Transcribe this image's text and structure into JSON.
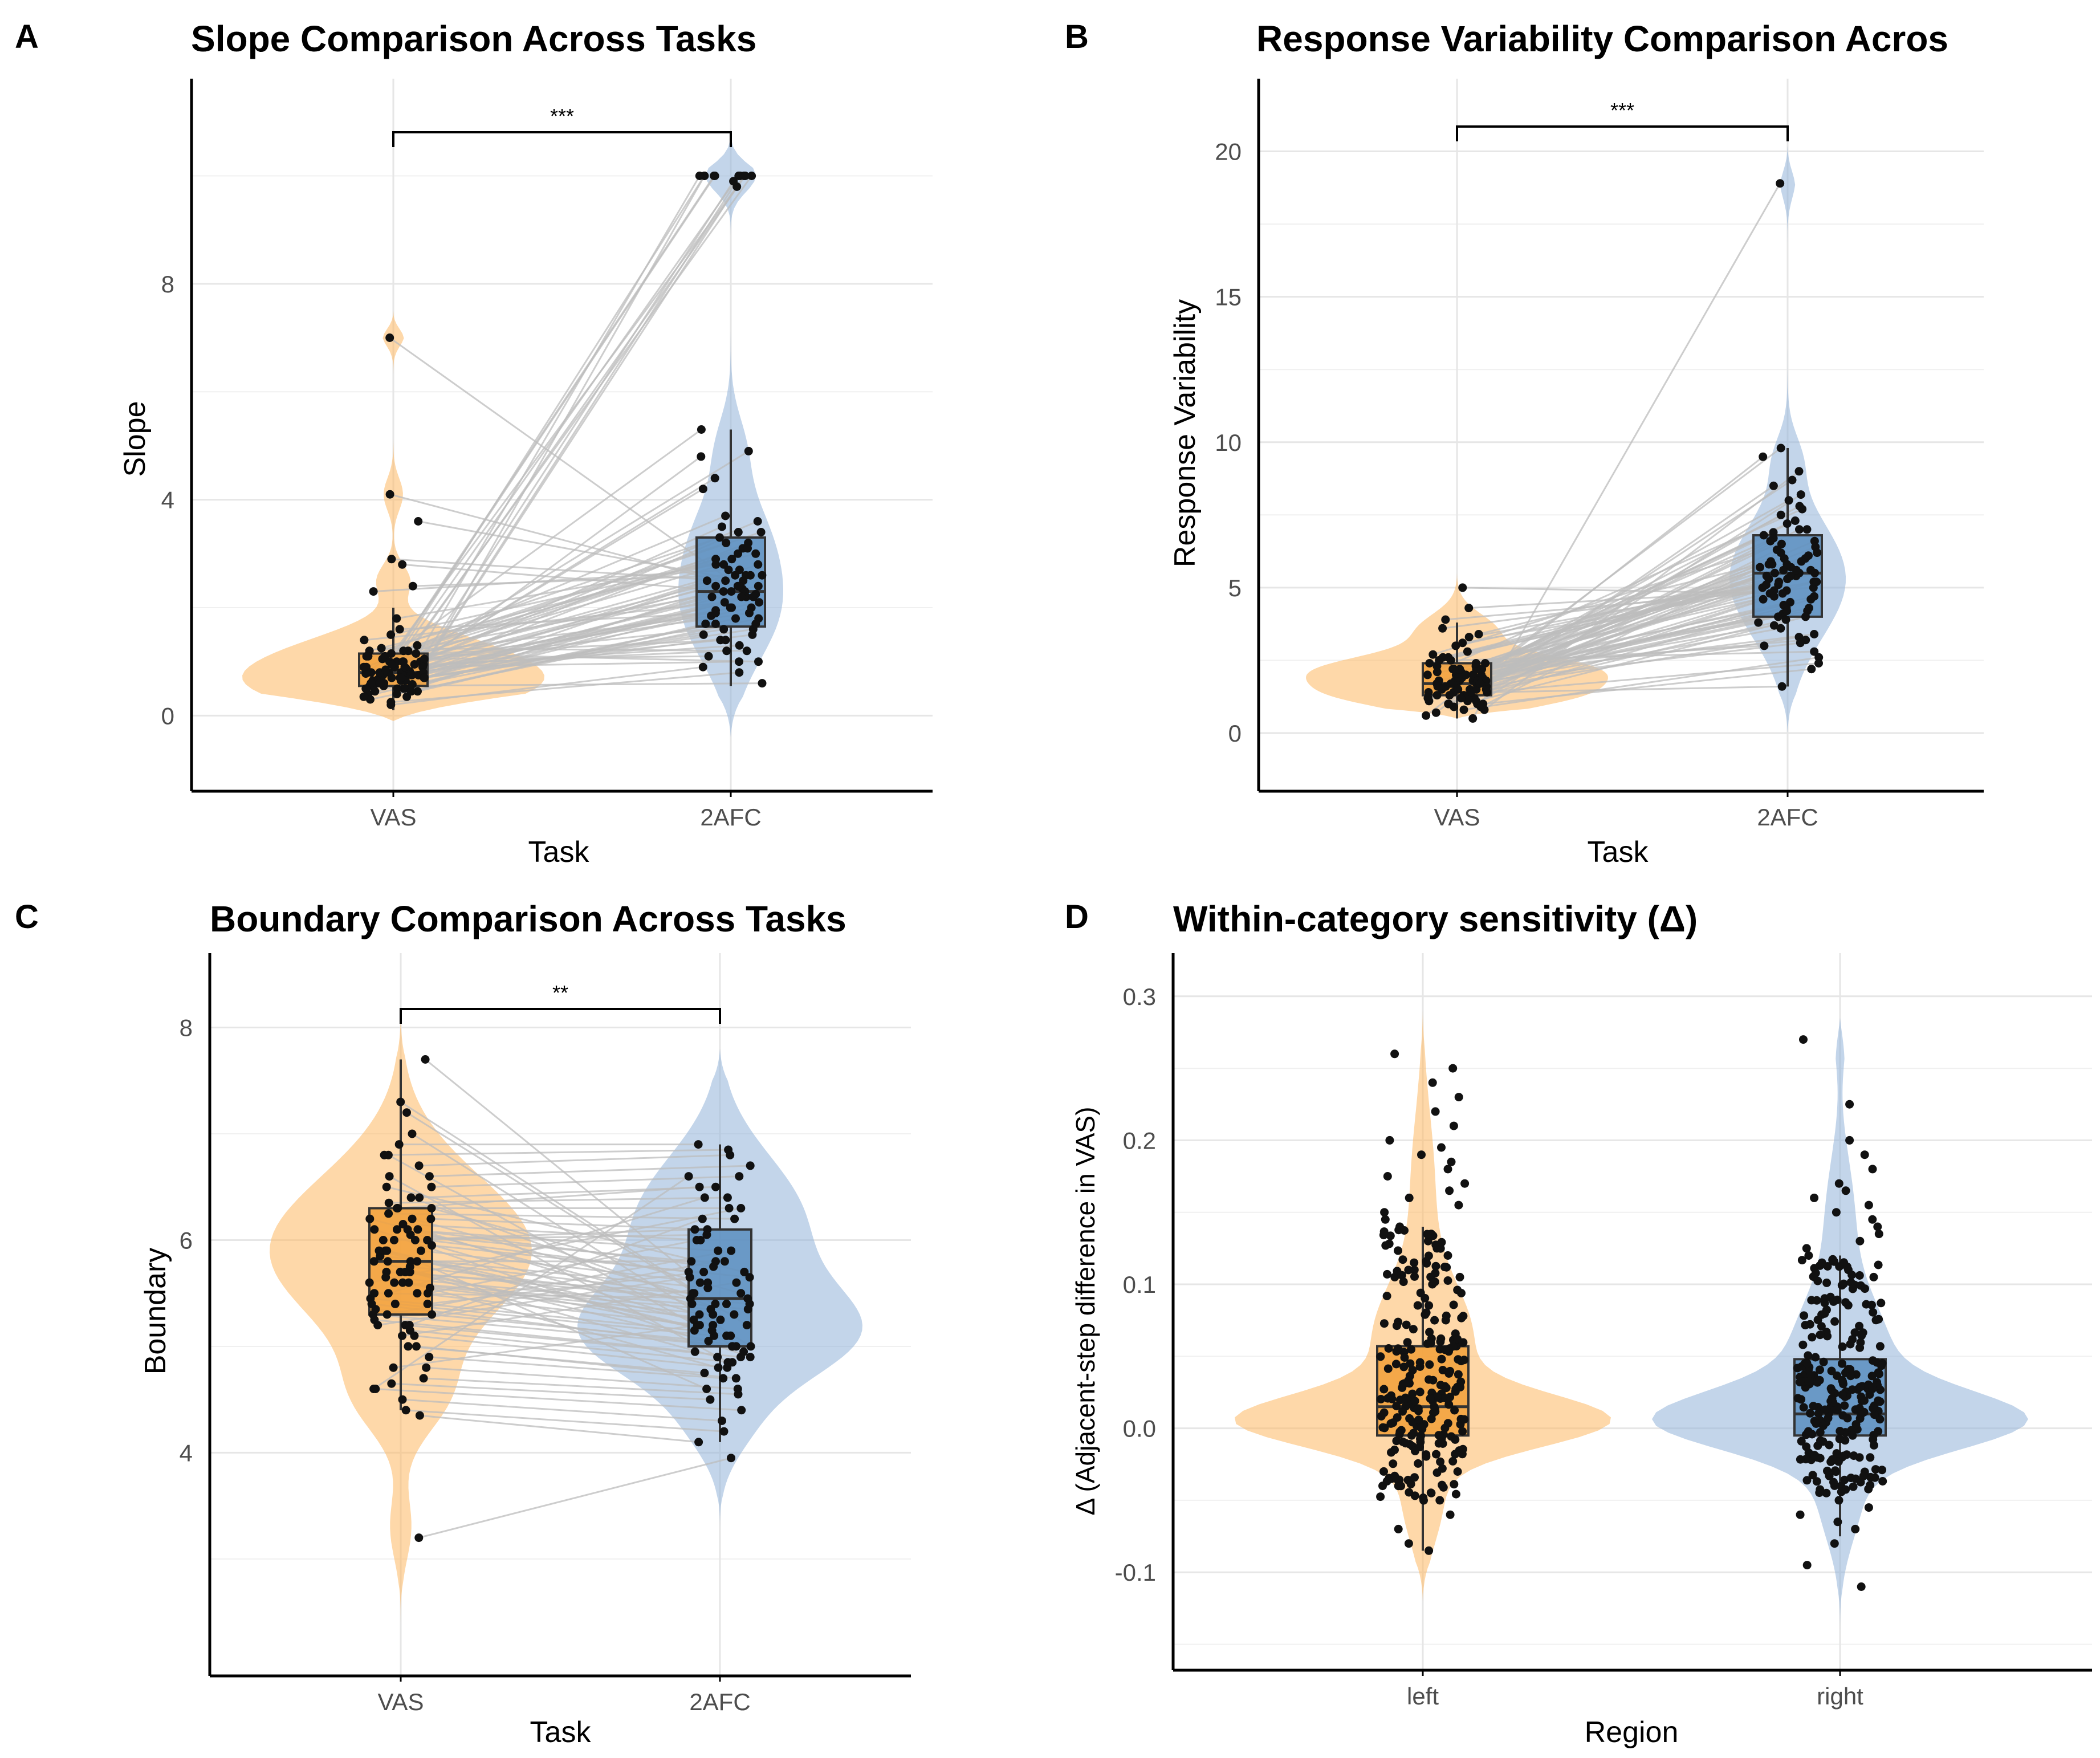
{
  "chart_data": [
    {
      "id": "A",
      "type": "violin",
      "panel_letter": "A",
      "title": "Slope Comparison Across Tasks",
      "xlabel": "Task",
      "ylabel": "Slope",
      "ylim": [
        -1.4,
        11.8
      ],
      "yticks": [
        0,
        4,
        8
      ],
      "ytick_labels": [
        "0",
        "4",
        "8"
      ],
      "minor_gridlines": [
        2,
        6,
        10
      ],
      "categories": [
        "VAS",
        "2AFC"
      ],
      "colors": [
        "#FDB863",
        "#92B3D8"
      ],
      "box_colors": [
        "#F2A038",
        "#5B8EC0"
      ],
      "paired": true,
      "significance": "***",
      "boxes": [
        {
          "q1": 0.55,
          "median": 0.8,
          "q3": 1.15,
          "whisker_low": 0.1,
          "whisker_high": 2.0
        },
        {
          "q1": 1.65,
          "median": 2.3,
          "q3": 3.3,
          "whisker_low": 0.55,
          "whisker_high": 5.3
        }
      ],
      "violins": [
        {
          "ymin": -0.1,
          "ymax": 7.5,
          "peaks": [
            [
              0.6,
              1.0,
              0.5
            ],
            [
              1.3,
              0.35,
              0.4
            ],
            [
              2.5,
              0.12,
              0.3
            ],
            [
              4.1,
              0.07,
              0.3
            ],
            [
              7.05,
              0.08,
              0.2
            ]
          ]
        },
        {
          "ymin": -0.4,
          "ymax": 10.9,
          "peaks": [
            [
              2.0,
              0.45,
              1.0
            ],
            [
              3.5,
              0.22,
              0.8
            ],
            [
              5.0,
              0.12,
              0.6
            ],
            [
              10.0,
              0.24,
              0.3
            ]
          ]
        }
      ],
      "n_points": 85,
      "series": [
        {
          "name": "VAS",
          "values": [
            0.35,
            0.45,
            0.5,
            0.55,
            0.58,
            0.6,
            0.62,
            0.65,
            0.68,
            0.7,
            0.72,
            0.75,
            0.78,
            0.8,
            0.82,
            0.85,
            0.88,
            0.9,
            0.95,
            1.0,
            1.05,
            1.1,
            1.15,
            1.2,
            1.3,
            1.5,
            1.8,
            2.3,
            2.4,
            3.6,
            4.1,
            7.0,
            0.4,
            0.5,
            0.6,
            0.7,
            0.8,
            0.9,
            1.0,
            1.1,
            0.3,
            0.45,
            0.55,
            0.65,
            0.75,
            0.85,
            0.95,
            1.05,
            1.15,
            0.2,
            0.25,
            0.55,
            0.6,
            0.7,
            0.8,
            0.9,
            1.0,
            1.2,
            1.4,
            1.6,
            0.5,
            0.6,
            0.7,
            0.8,
            0.9,
            1.0,
            0.35,
            0.45,
            0.65,
            0.75,
            0.85,
            0.95,
            1.1,
            1.25,
            2.8,
            2.9,
            0.5,
            0.7,
            0.9,
            1.0,
            0.6,
            0.8,
            1.2,
            0.4,
            0.7
          ]
        },
        {
          "name": "2AFC",
          "values": [
            10.0,
            10.0,
            10.0,
            10.0,
            10.0,
            10.0,
            10.0,
            9.8,
            10.0,
            10.0,
            10.0,
            9.9,
            5.3,
            4.9,
            4.8,
            4.4,
            4.2,
            3.7,
            3.6,
            3.5,
            3.4,
            3.3,
            3.2,
            3.1,
            3.0,
            2.9,
            2.8,
            2.7,
            2.6,
            2.5,
            2.4,
            2.35,
            2.3,
            2.25,
            2.2,
            2.1,
            2.0,
            1.95,
            1.9,
            1.85,
            1.8,
            1.7,
            1.6,
            1.5,
            1.4,
            1.3,
            1.2,
            1.1,
            1.0,
            0.9,
            0.8,
            0.6,
            2.3,
            2.2,
            2.4,
            2.6,
            2.8,
            3.0,
            2.1,
            1.9,
            1.7,
            1.5,
            2.5,
            2.7,
            2.9,
            3.1,
            2.0,
            1.8,
            1.6,
            2.2,
            2.4,
            2.6,
            1.4,
            1.2,
            2.3,
            2.5,
            3.2,
            3.4,
            1.0,
            1.7,
            2.0,
            2.2,
            2.4,
            2.6,
            2.8
          ]
        }
      ]
    },
    {
      "id": "B",
      "type": "violin",
      "panel_letter": "B",
      "title": "Response Variability Comparison Acros",
      "xlabel": "Task",
      "ylabel": "Response Variability",
      "ylim": [
        -2.0,
        22.5
      ],
      "yticks": [
        0,
        5,
        10,
        15,
        20
      ],
      "ytick_labels": [
        "0",
        "5",
        "10",
        "15",
        "20"
      ],
      "minor_gridlines": [
        2.5,
        7.5,
        12.5,
        17.5
      ],
      "categories": [
        "VAS",
        "2AFC"
      ],
      "colors": [
        "#FDB863",
        "#92B3D8"
      ],
      "box_colors": [
        "#F2A038",
        "#5B8EC0"
      ],
      "paired": true,
      "significance": "***",
      "boxes": [
        {
          "q1": 1.3,
          "median": 1.7,
          "q3": 2.4,
          "whisker_low": 0.5,
          "whisker_high": 3.8
        },
        {
          "q1": 4.0,
          "median": 5.5,
          "q3": 6.8,
          "whisker_low": 1.6,
          "whisker_high": 9.8
        }
      ],
      "violins": [
        {
          "ymin": 0.5,
          "ymax": 5.5,
          "peaks": [
            [
              1.3,
              0.8,
              0.5
            ],
            [
              2.2,
              0.9,
              0.5
            ],
            [
              3.5,
              0.3,
              0.6
            ]
          ]
        },
        {
          "ymin": 0.0,
          "ymax": 20.2,
          "peaks": [
            [
              5.3,
              0.6,
              2.0
            ],
            [
              9.5,
              0.1,
              0.8
            ],
            [
              19.0,
              0.08,
              0.6
            ]
          ]
        }
      ],
      "n_points": 85,
      "series": [
        {
          "name": "VAS",
          "values": [
            0.5,
            0.6,
            0.7,
            0.8,
            0.9,
            1.0,
            1.1,
            1.2,
            1.3,
            1.4,
            1.5,
            1.6,
            1.7,
            1.8,
            1.9,
            2.0,
            2.1,
            2.2,
            2.3,
            2.4,
            2.6,
            2.8,
            3.0,
            3.3,
            3.6,
            3.9,
            4.3,
            5.0,
            1.0,
            1.2,
            1.4,
            1.6,
            1.8,
            2.0,
            2.2,
            1.1,
            1.3,
            1.5,
            1.7,
            1.9,
            2.1,
            2.3,
            2.5,
            0.8,
            1.0,
            1.4,
            1.6,
            1.8,
            2.0,
            2.2,
            2.7,
            3.1,
            1.2,
            1.5,
            1.7,
            1.9,
            2.4,
            0.9,
            1.1,
            1.3,
            1.6,
            1.8,
            2.1,
            2.5,
            1.5,
            1.7,
            1.9,
            2.0,
            1.4,
            1.6,
            1.8,
            2.2,
            2.6,
            3.4,
            1.0,
            1.3,
            1.6,
            1.9,
            2.2,
            1.5,
            1.8,
            2.0,
            1.7,
            1.2,
            2.4
          ]
        },
        {
          "name": "2AFC",
          "values": [
            18.9,
            9.8,
            9.5,
            9.0,
            8.5,
            8.2,
            8.0,
            7.8,
            7.5,
            7.2,
            7.0,
            6.8,
            6.6,
            6.4,
            6.2,
            6.0,
            5.9,
            5.8,
            5.7,
            5.6,
            5.5,
            5.4,
            5.3,
            5.2,
            5.1,
            5.0,
            4.9,
            4.8,
            4.7,
            4.6,
            4.5,
            4.4,
            4.3,
            4.2,
            4.1,
            4.0,
            3.9,
            3.8,
            3.6,
            3.4,
            3.2,
            3.0,
            2.8,
            2.6,
            2.2,
            1.6,
            5.5,
            5.6,
            5.8,
            6.1,
            6.5,
            5.2,
            4.9,
            4.6,
            4.3,
            5.0,
            5.3,
            5.7,
            6.3,
            6.9,
            7.3,
            3.7,
            4.4,
            5.1,
            5.4,
            5.9,
            6.7,
            7.7,
            8.7,
            3.3,
            4.0,
            4.8,
            5.5,
            6.0,
            6.6,
            2.4,
            3.1,
            4.2,
            5.2,
            5.8,
            4.7,
            5.6,
            6.2,
            7.0,
            5.4
          ]
        }
      ]
    },
    {
      "id": "C",
      "type": "violin",
      "panel_letter": "C",
      "title": "Boundary Comparison Across Tasks",
      "xlabel": "Task",
      "ylabel": "Boundary",
      "ylim": [
        1.9,
        8.7
      ],
      "yticks": [
        4,
        6,
        8
      ],
      "ytick_labels": [
        "4",
        "6",
        "8"
      ],
      "minor_gridlines": [
        3,
        5,
        7
      ],
      "categories": [
        "VAS",
        "2AFC"
      ],
      "colors": [
        "#FDB863",
        "#92B3D8"
      ],
      "box_colors": [
        "#F2A038",
        "#5B8EC0"
      ],
      "paired": true,
      "significance": "**",
      "boxes": [
        {
          "q1": 5.3,
          "median": 5.8,
          "q3": 6.3,
          "whisker_low": 4.4,
          "whisker_high": 7.7
        },
        {
          "q1": 5.0,
          "median": 5.45,
          "q3": 6.1,
          "whisker_low": 4.1,
          "whisker_high": 6.9
        }
      ],
      "violins": [
        {
          "ymin": 2.4,
          "ymax": 8.1,
          "peaks": [
            [
              5.9,
              1.0,
              0.7
            ],
            [
              4.5,
              0.25,
              0.35
            ],
            [
              3.3,
              0.08,
              0.3
            ]
          ]
        },
        {
          "ymin": 3.3,
          "ymax": 7.8,
          "peaks": [
            [
              5.1,
              1.0,
              0.45
            ],
            [
              6.2,
              0.65,
              0.6
            ],
            [
              4.2,
              0.15,
              0.3
            ]
          ]
        }
      ],
      "n_points": 85,
      "series": [
        {
          "name": "VAS",
          "values": [
            3.2,
            4.35,
            4.4,
            4.5,
            4.6,
            4.65,
            4.7,
            4.8,
            4.9,
            5.0,
            5.1,
            5.15,
            5.2,
            5.25,
            5.3,
            5.35,
            5.4,
            5.45,
            5.5,
            5.55,
            5.6,
            5.65,
            5.7,
            5.75,
            5.8,
            5.85,
            5.9,
            5.95,
            6.0,
            6.05,
            6.1,
            6.15,
            6.2,
            6.25,
            6.3,
            6.35,
            6.4,
            6.5,
            6.6,
            6.7,
            6.8,
            6.9,
            7.0,
            7.2,
            7.3,
            7.7,
            5.3,
            5.5,
            5.7,
            5.9,
            6.1,
            6.3,
            5.4,
            5.6,
            5.8,
            6.0,
            6.2,
            5.2,
            5.5,
            5.8,
            6.1,
            6.4,
            5.1,
            5.3,
            5.6,
            5.9,
            6.2,
            6.5,
            5.0,
            5.4,
            5.7,
            6.0,
            6.3,
            4.8,
            5.5,
            5.8,
            6.6,
            5.6,
            6.0,
            5.9,
            5.2,
            6.8,
            4.6,
            5.7,
            6.1
          ]
        },
        {
          "name": "2AFC",
          "values": [
            3.95,
            4.1,
            4.2,
            4.3,
            4.4,
            4.5,
            4.55,
            4.6,
            4.7,
            4.75,
            4.8,
            4.85,
            4.9,
            4.95,
            5.0,
            5.05,
            5.1,
            5.15,
            5.2,
            5.25,
            5.3,
            5.35,
            5.4,
            5.45,
            5.5,
            5.55,
            5.6,
            5.65,
            5.7,
            5.8,
            5.9,
            6.0,
            6.1,
            6.2,
            6.3,
            6.4,
            6.5,
            6.6,
            6.7,
            6.8,
            6.85,
            6.9,
            5.0,
            5.2,
            5.4,
            5.6,
            5.8,
            6.0,
            4.9,
            5.1,
            5.3,
            5.5,
            5.7,
            4.8,
            5.0,
            5.2,
            5.4,
            6.2,
            6.4,
            4.6,
            4.9,
            5.3,
            5.6,
            5.9,
            6.3,
            5.1,
            5.4,
            5.7,
            4.7,
            5.0,
            5.5,
            6.1,
            6.5,
            5.2,
            5.45,
            5.8,
            4.85,
            5.35,
            6.05,
            5.25,
            5.65,
            4.95,
            6.6,
            5.15,
            5.75
          ]
        }
      ]
    },
    {
      "id": "D",
      "type": "violin",
      "panel_letter": "D",
      "title": "Within-category sensitivity (Δ)",
      "xlabel": "Region",
      "ylabel": "Δ (Adjacent-step difference in VAS)",
      "ylim": [
        -0.168,
        0.33
      ],
      "yticks": [
        -0.1,
        0.0,
        0.1,
        0.2,
        0.3
      ],
      "ytick_labels": [
        "-0.1",
        "0.0",
        "0.1",
        "0.2",
        "0.3"
      ],
      "minor_gridlines": [
        -0.15,
        -0.05,
        0.05,
        0.15,
        0.25
      ],
      "categories": [
        "left",
        "right"
      ],
      "colors": [
        "#FDB863",
        "#92B3D8"
      ],
      "box_colors": [
        "#F2A038",
        "#5B8EC0"
      ],
      "paired": false,
      "significance": "",
      "boxes": [
        {
          "q1": -0.005,
          "median": 0.015,
          "q3": 0.057,
          "whisker_low": -0.085,
          "whisker_high": 0.14
        },
        {
          "q1": -0.005,
          "median": 0.01,
          "q3": 0.048,
          "whisker_low": -0.075,
          "whisker_high": 0.12
        }
      ],
      "violins": [
        {
          "ymin": -0.12,
          "ymax": 0.29,
          "peaks": [
            [
              0.005,
              1.0,
              0.018
            ],
            [
              0.06,
              0.3,
              0.04
            ],
            [
              0.17,
              0.07,
              0.05
            ],
            [
              -0.05,
              0.12,
              0.03
            ]
          ]
        },
        {
          "ymin": -0.14,
          "ymax": 0.285,
          "peaks": [
            [
              0.005,
              0.95,
              0.02
            ],
            [
              0.05,
              0.3,
              0.04
            ],
            [
              0.15,
              0.08,
              0.04
            ],
            [
              -0.05,
              0.12,
              0.03
            ],
            [
              0.27,
              0.03,
              0.02
            ]
          ]
        }
      ],
      "n_points": 260,
      "series": [
        {
          "name": "left",
          "values": [
            0.26,
            0.25,
            0.24,
            0.23,
            0.22,
            0.21,
            0.2,
            0.195,
            0.19,
            0.185,
            0.18,
            0.175,
            0.17,
            0.165,
            0.16,
            0.155,
            0.15,
            0.145,
            0.14,
            0.135,
            0.13,
            0.125,
            0.12,
            0.115,
            0.11,
            0.105,
            0.1,
            -0.085,
            -0.08,
            -0.07,
            -0.06,
            -0.05,
            -0.045,
            -0.04,
            -0.035,
            -0.03
          ]
        },
        {
          "name": "right",
          "values": [
            0.27,
            0.225,
            0.2,
            0.19,
            0.18,
            0.17,
            0.165,
            0.16,
            0.155,
            0.15,
            0.145,
            0.14,
            0.135,
            0.13,
            0.125,
            0.12,
            0.115,
            0.11,
            0.105,
            -0.11,
            -0.095,
            -0.08,
            -0.07,
            -0.065,
            -0.06,
            -0.055,
            -0.05,
            -0.045,
            -0.04
          ]
        }
      ]
    }
  ]
}
